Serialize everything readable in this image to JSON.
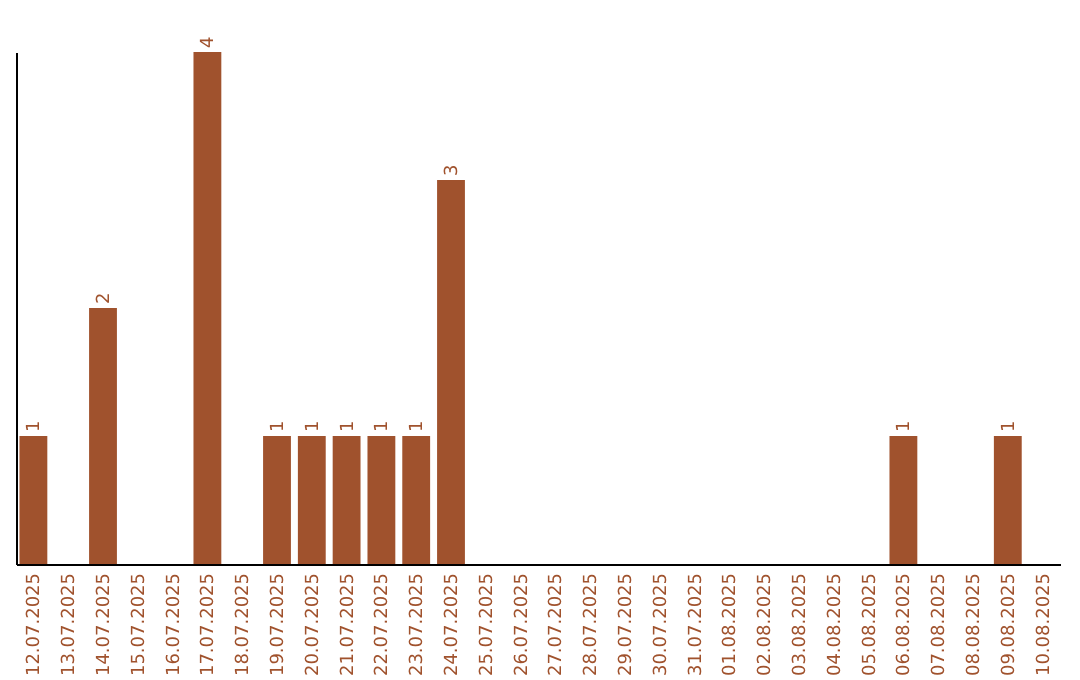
{
  "chart_data": {
    "type": "bar",
    "categories": [
      "12.07.2025",
      "13.07.2025",
      "14.07.2025",
      "15.07.2025",
      "16.07.2025",
      "17.07.2025",
      "18.07.2025",
      "19.07.2025",
      "20.07.2025",
      "21.07.2025",
      "22.07.2025",
      "23.07.2025",
      "24.07.2025",
      "25.07.2025",
      "26.07.2025",
      "27.07.2025",
      "28.07.2025",
      "29.07.2025",
      "30.07.2025",
      "31.07.2025",
      "01.08.2025",
      "02.08.2025",
      "03.08.2025",
      "04.08.2025",
      "05.08.2025",
      "06.08.2025",
      "07.08.2025",
      "08.08.2025",
      "09.08.2025",
      "10.08.2025"
    ],
    "values": [
      1,
      0,
      2,
      0,
      0,
      4,
      0,
      1,
      1,
      1,
      1,
      1,
      3,
      0,
      0,
      0,
      0,
      0,
      0,
      0,
      0,
      0,
      0,
      0,
      0,
      1,
      0,
      0,
      1,
      0
    ],
    "value_labels": [
      "1",
      null,
      "2",
      null,
      null,
      "4",
      null,
      "1",
      "1",
      "1",
      "1",
      "1",
      "3",
      null,
      null,
      null,
      null,
      null,
      null,
      null,
      null,
      null,
      null,
      null,
      null,
      "1",
      null,
      null,
      "1",
      null
    ],
    "color": "#a0522d",
    "ylim": [
      0,
      4
    ],
    "tick_labels": "x",
    "grid": false
  }
}
